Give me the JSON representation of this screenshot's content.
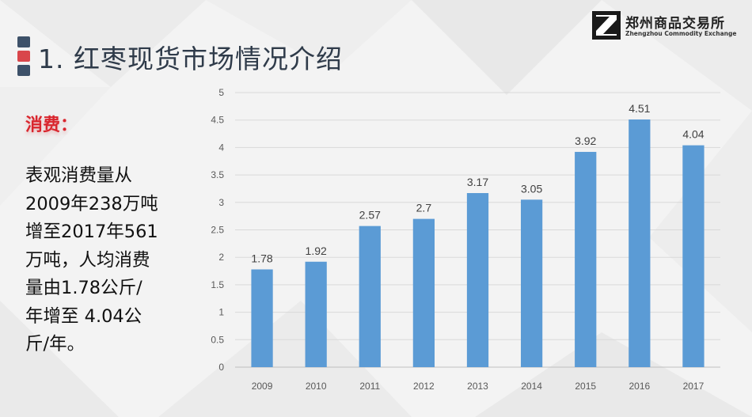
{
  "slide": {
    "title": "1. 红枣现货市场情况介绍",
    "logo_cn": "郑州商品交易所",
    "logo_en": "Zhengzhou Commodity Exchange",
    "consume_label": "消费：",
    "body_lines": [
      "表观消费量从",
      "2009年238万吨",
      "增至2017年561",
      "万吨，人均消费",
      "量由1.78公斤/",
      "年增至  4.04公",
      "斤/年。"
    ],
    "colors": {
      "title": "#2f3b4a",
      "accent_red": "#d9262e",
      "bar": "#5b9bd5"
    }
  },
  "chart_data": {
    "type": "bar",
    "categories": [
      "2009",
      "2010",
      "2011",
      "2012",
      "2013",
      "2014",
      "2015",
      "2016",
      "2017"
    ],
    "values": [
      1.78,
      1.92,
      2.57,
      2.7,
      3.17,
      3.05,
      3.92,
      4.51,
      4.04
    ],
    "value_labels": [
      "1.78",
      "1.92",
      "2.57",
      "2.7",
      "3.17",
      "3.05",
      "3.92",
      "4.51",
      "4.04"
    ],
    "yticks": [
      "0",
      "0.5",
      "1",
      "1.5",
      "2",
      "2.5",
      "3",
      "3.5",
      "4",
      "4.5",
      "5"
    ],
    "ylim": [
      0,
      5
    ],
    "title": "",
    "xlabel": "",
    "ylabel": "",
    "grid": true,
    "legend": "none"
  }
}
